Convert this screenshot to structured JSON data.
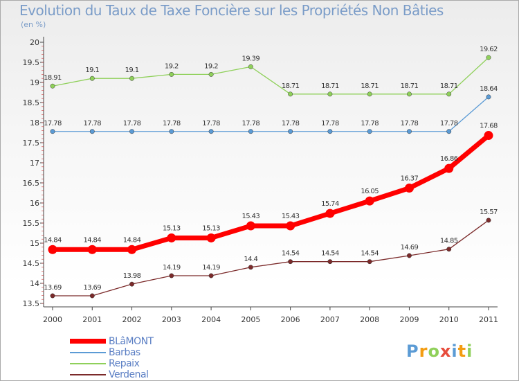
{
  "chart_data": {
    "type": "line",
    "title": "Evolution du Taux de Taxe Foncière sur les Propriétés Non Bâties",
    "subtitle": "(en %)",
    "x": [
      "2000",
      "2001",
      "2002",
      "2003",
      "2004",
      "2005",
      "2006",
      "2007",
      "2008",
      "2009",
      "2010",
      "2011"
    ],
    "ylim": [
      13.5,
      20
    ],
    "yticks": [
      "13.5",
      "14",
      "14.5",
      "15",
      "15.5",
      "16",
      "16.5",
      "17",
      "17.5",
      "18",
      "18.5",
      "19",
      "19.5",
      "20"
    ],
    "grid": false,
    "legend_position": "bottom-left",
    "series": [
      {
        "name": "Repaix",
        "color": "#8fd05a",
        "values": [
          18.91,
          19.1,
          19.1,
          19.2,
          19.2,
          19.39,
          18.71,
          18.71,
          18.71,
          18.71,
          18.71,
          19.62
        ],
        "labels": [
          "18.91",
          "19.1",
          "19.1",
          "19.2",
          "19.2",
          "19.39",
          "18.71",
          "18.71",
          "18.71",
          "18.71",
          "18.71",
          "19.62"
        ]
      },
      {
        "name": "Barbas",
        "color": "#5b9bd5",
        "values": [
          17.78,
          17.78,
          17.78,
          17.78,
          17.78,
          17.78,
          17.78,
          17.78,
          17.78,
          17.78,
          17.78,
          18.64
        ],
        "labels": [
          "17.78",
          "17.78",
          "17.78",
          "17.78",
          "17.78",
          "17.78",
          "17.78",
          "17.78",
          "17.78",
          "17.78",
          "17.78",
          "18.64"
        ]
      },
      {
        "name": "BLâMONT",
        "color": "#ff0000",
        "values": [
          14.84,
          14.84,
          14.84,
          15.13,
          15.13,
          15.43,
          15.43,
          15.74,
          16.05,
          16.37,
          16.86,
          17.68
        ],
        "labels": [
          "14.84",
          "14.84",
          "14.84",
          "15.13",
          "15.13",
          "15.43",
          "15.43",
          "15.74",
          "16.05",
          "16.37",
          "16.86",
          "17.68"
        ]
      },
      {
        "name": "Verdenal",
        "color": "#7b2a2a",
        "values": [
          13.69,
          13.69,
          13.98,
          14.19,
          14.19,
          14.4,
          14.54,
          14.54,
          14.54,
          14.69,
          14.85,
          15.57
        ],
        "labels": [
          "13.69",
          "13.69",
          "13.98",
          "14.19",
          "14.19",
          "14.4",
          "14.54",
          "14.54",
          "14.54",
          "14.69",
          "14.85",
          "15.57"
        ]
      }
    ]
  },
  "legend": {
    "items": [
      {
        "label": "BLâMONT",
        "color": "#ff0000"
      },
      {
        "label": "Barbas",
        "color": "#5b9bd5"
      },
      {
        "label": "Repaix",
        "color": "#8fd05a"
      },
      {
        "label": "Verdenal",
        "color": "#7b2a2a"
      }
    ]
  },
  "logo": {
    "letters": [
      "P",
      "r",
      "o",
      "x",
      "i",
      "t",
      "i"
    ],
    "colors": [
      "#5b9bd5",
      "#f39c12",
      "#8fd05a",
      "#e74c3c",
      "#5b9bd5",
      "#f39c12",
      "#8fd05a"
    ]
  }
}
